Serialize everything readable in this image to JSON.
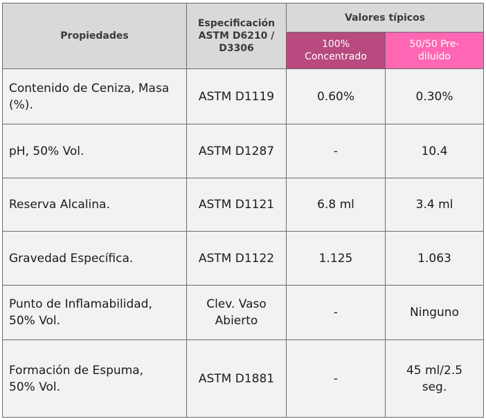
{
  "headers": {
    "properties": "Propiedades",
    "specification": "Especificación ASTM D6210 / D3306",
    "typical_values": "Valores típicos",
    "concentrated": "100% Concentrado",
    "prediluted": "50/50 Pre-diluido"
  },
  "rows": [
    {
      "property": "Contenido de Ceniza, Masa (%).",
      "spec": "ASTM D1119",
      "concentrated": "0.60%",
      "prediluted": "0.30%"
    },
    {
      "property": "pH, 50% Vol.",
      "spec": "ASTM D1287",
      "concentrated": "-",
      "prediluted": "10.4"
    },
    {
      "property": "Reserva Alcalina.",
      "spec": "ASTM D1121",
      "concentrated": "6.8 ml",
      "prediluted": "3.4 ml"
    },
    {
      "property": "Gravedad Específica.",
      "spec": "ASTM D1122",
      "concentrated": "1.125",
      "prediluted": "1.063"
    },
    {
      "property": "Punto de Inflamabilidad, 50% Vol.",
      "spec": "Clev. Vaso Abierto",
      "concentrated": "-",
      "prediluted": "Ninguno"
    },
    {
      "property": "Formación de Espuma, 50% Vol.",
      "spec": "ASTM D1881",
      "concentrated": "-",
      "prediluted": "45 ml/2.5 seg."
    }
  ],
  "colors": {
    "header_bg": "#d9d9d9",
    "concentrated_bg": "#b84a7f",
    "prediluted_bg": "#ff66b3",
    "body_bg": "#f2f2f2"
  }
}
